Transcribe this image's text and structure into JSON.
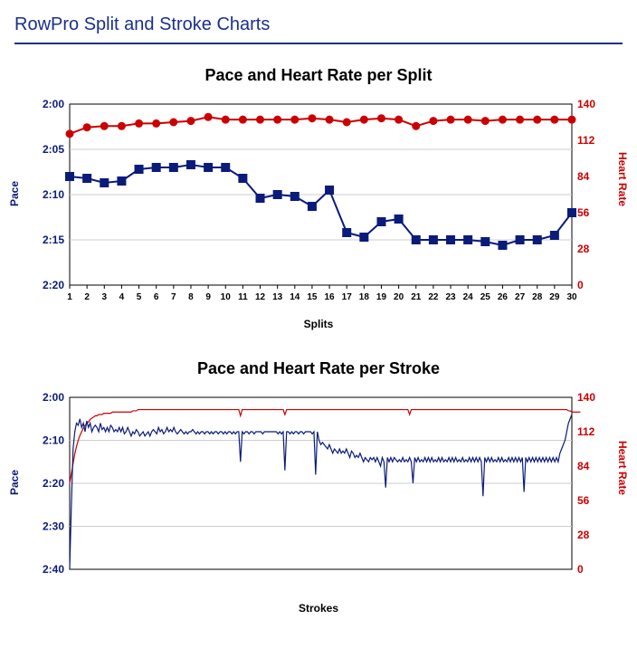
{
  "page_title": "RowPro Split and Stroke Charts",
  "colors": {
    "title": "#1a2f8a",
    "rule": "#1a2f8a",
    "pace": "#0a1b7a",
    "hr": "#cc0000",
    "grid": "#cccccc",
    "axis": "#000000",
    "tick_text": "#000000",
    "bg": "#ffffff",
    "chart_title": "#000000"
  },
  "chart1": {
    "title": "Pace and Heart Rate per Split",
    "type": "dual-axis-line-markers",
    "x_label": "Splits",
    "x_ticks": [
      1,
      2,
      3,
      4,
      5,
      6,
      7,
      8,
      9,
      10,
      11,
      12,
      13,
      14,
      15,
      16,
      17,
      18,
      19,
      20,
      21,
      22,
      23,
      24,
      25,
      26,
      27,
      28,
      29,
      30
    ],
    "y_left": {
      "label": "Pace",
      "ticks": [
        "2:00",
        "2:05",
        "2:10",
        "2:15",
        "2:20"
      ],
      "tick_values_sec": [
        120,
        125,
        130,
        135,
        140
      ],
      "min_sec": 120,
      "max_sec": 140,
      "color": "#0a1b7a",
      "marker": "square",
      "marker_size": 5,
      "line_width": 2
    },
    "y_right": {
      "label": "Heart Rate",
      "ticks": [
        140,
        112,
        84,
        56,
        28,
        0
      ],
      "min": 0,
      "max": 140,
      "color": "#cc0000",
      "marker": "circle",
      "marker_size": 4,
      "line_width": 2
    },
    "pace_sec": [
      128.0,
      128.2,
      128.7,
      128.5,
      127.2,
      127.0,
      127.0,
      126.7,
      127.0,
      127.0,
      128.2,
      130.4,
      130.0,
      130.2,
      131.3,
      129.5,
      134.2,
      134.7,
      133.0,
      132.7,
      135.0,
      135.0,
      135.0,
      135.0,
      135.2,
      135.6,
      135.0,
      135.0,
      134.5,
      132.0
    ],
    "hr": [
      117,
      122,
      123,
      123,
      125,
      125,
      126,
      127,
      130,
      128,
      128,
      128,
      128,
      128,
      129,
      128,
      126,
      128,
      129,
      128,
      123,
      127,
      128,
      128,
      127,
      128,
      128,
      128,
      128,
      128
    ]
  },
  "chart2": {
    "title": "Pace and Heart Rate per Stroke",
    "type": "dual-axis-line",
    "x_label": "Strokes",
    "x_ticks": [],
    "y_left": {
      "label": "Pace",
      "ticks": [
        "2:00",
        "2:10",
        "2:20",
        "2:30",
        "2:40"
      ],
      "tick_values_sec": [
        120,
        130,
        140,
        150,
        160
      ],
      "min_sec": 120,
      "max_sec": 160,
      "color": "#0a1b7a",
      "line_width": 1.2
    },
    "y_right": {
      "label": "Heart Rate",
      "ticks": [
        140,
        112,
        84,
        56,
        28,
        0
      ],
      "min": 0,
      "max": 140,
      "color": "#cc0000",
      "line_width": 1.2
    },
    "n_strokes": 300,
    "pace_seed_sec": [
      160,
      145,
      132,
      128,
      126,
      126.5,
      125,
      127,
      126,
      128,
      125.5,
      127,
      126,
      128,
      127,
      126.5,
      127,
      128,
      126,
      127.5,
      127,
      128,
      127,
      128,
      126.5,
      127,
      128,
      127.5,
      128,
      127,
      128,
      127,
      128.5,
      128,
      127,
      128,
      129,
      128,
      128.5,
      127.5,
      128,
      129,
      128.5,
      128,
      129,
      128.5,
      128,
      129,
      128,
      127.5,
      128,
      128.5,
      127,
      128,
      127.5,
      128.5,
      128,
      127,
      128,
      127.5,
      128,
      127,
      128,
      128.5,
      128,
      127.5,
      128,
      128.5,
      128,
      128.5,
      128,
      128,
      127.5,
      128,
      128.5,
      128,
      128.5,
      128,
      128,
      128.5,
      128,
      128,
      128.5,
      128,
      128.5,
      128,
      128,
      128.5,
      128,
      128,
      128.5,
      128,
      128.5,
      128,
      128,
      128.5,
      128,
      128.5,
      128,
      128,
      135,
      128,
      128.5,
      128,
      128,
      128.5,
      128,
      128,
      128.5,
      128,
      128,
      128,
      128,
      128.5,
      128,
      128,
      128,
      128,
      128,
      128,
      128,
      128,
      128.5,
      128,
      128.5,
      128,
      137,
      128,
      128,
      128.5,
      128,
      128.5,
      128,
      128,
      128.5,
      128,
      128,
      128.5,
      128,
      128,
      128,
      128,
      128.5,
      128,
      138,
      128,
      130,
      131,
      130.5,
      131,
      131.5,
      132,
      131,
      132,
      133,
      132,
      132.5,
      133,
      132,
      133,
      132.5,
      133,
      132,
      133,
      134,
      132.5,
      133,
      134,
      133.5,
      134,
      133,
      134,
      135,
      134,
      134.5,
      135,
      134,
      134.5,
      134,
      135,
      134,
      135,
      136,
      134,
      135,
      141,
      134,
      135,
      134,
      135,
      134,
      134.5,
      135,
      134.5,
      135,
      134,
      135,
      134.5,
      135,
      134,
      135,
      140,
      134,
      135,
      134,
      135,
      134.5,
      135,
      134,
      135,
      134,
      135,
      134,
      135,
      134.5,
      135,
      134,
      135,
      134,
      135,
      134.5,
      135,
      134,
      135,
      134,
      135,
      134,
      135,
      134.5,
      135,
      134,
      135,
      134.5,
      135,
      134,
      135,
      134,
      135,
      134,
      135,
      134,
      135,
      143,
      134,
      135,
      134,
      135,
      134,
      135,
      134.5,
      135,
      134,
      135,
      134,
      135,
      134.5,
      135,
      134,
      135,
      134,
      135,
      134,
      135,
      134,
      135,
      134,
      142,
      134,
      135,
      134,
      135,
      134,
      135,
      134,
      135,
      134,
      135,
      134,
      135,
      134,
      135,
      134,
      135,
      134,
      135,
      134,
      135,
      133,
      132,
      131,
      130,
      128,
      126,
      125,
      124
    ],
    "hr_seed": [
      70,
      78,
      86,
      94,
      100,
      105,
      109,
      112,
      115,
      117,
      119,
      120,
      122,
      123,
      124,
      125,
      125,
      126,
      126,
      126,
      127,
      127,
      127,
      127,
      127,
      128,
      128,
      128,
      128,
      128,
      128,
      128,
      128,
      128,
      128,
      128,
      128,
      129,
      129,
      129,
      130,
      130,
      130,
      130,
      130,
      130,
      130,
      130,
      130,
      130,
      130,
      130,
      130,
      130,
      130,
      130,
      130,
      130,
      130,
      130,
      130,
      130,
      130,
      130,
      130,
      130,
      130,
      130,
      130,
      130,
      130,
      130,
      130,
      130,
      130,
      130,
      130,
      130,
      130,
      130,
      130,
      130,
      130,
      130,
      130,
      130,
      130,
      130,
      130,
      130,
      130,
      130,
      130,
      130,
      130,
      130,
      130,
      130,
      130,
      130,
      125,
      130,
      130,
      130,
      130,
      130,
      130,
      130,
      130,
      130,
      130,
      130,
      130,
      130,
      130,
      130,
      130,
      130,
      130,
      130,
      130,
      130,
      130,
      130,
      130,
      130,
      126,
      130,
      130,
      130,
      130,
      130,
      130,
      130,
      130,
      130,
      130,
      130,
      130,
      130,
      130,
      130,
      130,
      130,
      130,
      130,
      130,
      130,
      130,
      130,
      130,
      130,
      130,
      130,
      130,
      130,
      130,
      130,
      130,
      130,
      130,
      130,
      130,
      130,
      130,
      130,
      130,
      130,
      130,
      130,
      130,
      130,
      130,
      130,
      130,
      130,
      130,
      130,
      130,
      130,
      130,
      130,
      130,
      130,
      130,
      130,
      130,
      130,
      130,
      130,
      130,
      130,
      130,
      130,
      130,
      130,
      130,
      130,
      130,
      126,
      130,
      130,
      130,
      130,
      130,
      130,
      130,
      130,
      130,
      130,
      130,
      130,
      130,
      130,
      130,
      130,
      130,
      130,
      130,
      130,
      130,
      130,
      130,
      130,
      130,
      130,
      130,
      130,
      130,
      130,
      130,
      130,
      130,
      130,
      130,
      130,
      130,
      130,
      130,
      130,
      130,
      130,
      130,
      130,
      130,
      130,
      130,
      130,
      130,
      130,
      130,
      130,
      130,
      130,
      130,
      130,
      130,
      130,
      130,
      130,
      130,
      130,
      130,
      130,
      130,
      130,
      130,
      130,
      130,
      130,
      130,
      130,
      130,
      130,
      130,
      130,
      130,
      130,
      130,
      130,
      130,
      130,
      130,
      130,
      130,
      130,
      130,
      130,
      130,
      130,
      130,
      130,
      129,
      129,
      128,
      128,
      128,
      128,
      128,
      128
    ]
  }
}
